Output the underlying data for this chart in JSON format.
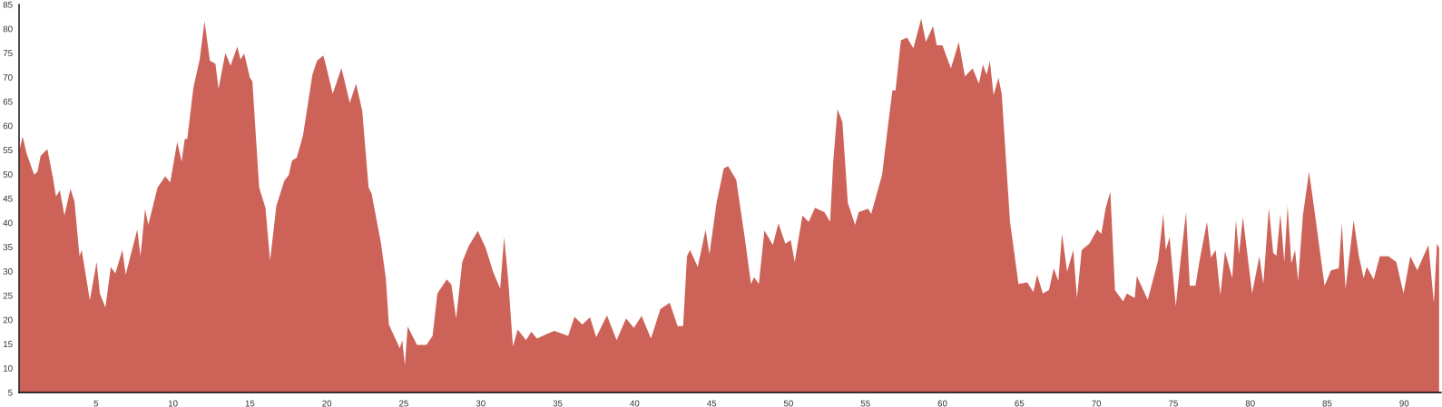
{
  "chart_data": {
    "type": "area",
    "xlim": [
      0,
      92.4
    ],
    "ylim": [
      5,
      85
    ],
    "xticks": [
      5,
      10,
      15,
      20,
      25,
      30,
      35,
      40,
      45,
      50,
      55,
      60,
      65,
      70,
      75,
      80,
      85,
      90
    ],
    "yticks": [
      5,
      10,
      15,
      20,
      25,
      30,
      35,
      40,
      45,
      50,
      55,
      60,
      65,
      70,
      75,
      80,
      85
    ],
    "grid": false,
    "series": [
      {
        "color": "#cd6358",
        "x": [
          0.03,
          0.23,
          0.48,
          0.98,
          1.2,
          1.4,
          1.84,
          2.2,
          2.4,
          2.65,
          2.95,
          3.34,
          3.6,
          3.93,
          4.07,
          4.6,
          5.04,
          5.25,
          5.61,
          5.96,
          6.26,
          6.71,
          6.93,
          7.68,
          7.89,
          8.19,
          8.4,
          9.0,
          9.5,
          9.82,
          10.28,
          10.56,
          10.77,
          10.93,
          11.33,
          11.74,
          12.05,
          12.4,
          12.76,
          12.96,
          13.27,
          13.41,
          13.74,
          14.18,
          14.39,
          14.63,
          15.0,
          15.16,
          15.6,
          16.01,
          16.31,
          16.72,
          17.23,
          17.53,
          17.73,
          18.04,
          18.45,
          19.06,
          19.36,
          19.77,
          19.97,
          20.38,
          20.95,
          21.49,
          21.9,
          22.3,
          22.71,
          22.91,
          23.52,
          23.83,
          24.03,
          24.74,
          24.9,
          25.07,
          25.25,
          25.86,
          26.47,
          26.87,
          27.18,
          27.79,
          28.09,
          28.4,
          28.8,
          29.2,
          29.81,
          30.32,
          30.8,
          31.26,
          31.52,
          31.79,
          32.09,
          32.4,
          32.94,
          33.29,
          33.65,
          34.26,
          34.77,
          35.68,
          36.09,
          36.6,
          37.1,
          37.5,
          38.2,
          38.83,
          39.44,
          39.95,
          40.45,
          41.06,
          41.67,
          42.28,
          42.79,
          43.15,
          43.4,
          43.6,
          44.1,
          44.61,
          44.86,
          45.32,
          45.79,
          46.07,
          46.6,
          47.15,
          47.56,
          47.76,
          48.07,
          48.43,
          48.98,
          49.34,
          49.79,
          50.14,
          50.4,
          50.9,
          51.31,
          51.72,
          52.33,
          52.7,
          52.9,
          53.18,
          53.5,
          53.85,
          54.32,
          54.56,
          55.17,
          55.37,
          56.08,
          56.49,
          56.75,
          56.95,
          57.3,
          57.7,
          58.11,
          58.62,
          58.92,
          59.39,
          59.63,
          60.0,
          60.55,
          61.06,
          61.46,
          61.96,
          62.37,
          62.63,
          62.87,
          63.08,
          63.32,
          63.64,
          63.85,
          64.39,
          64.94,
          65.51,
          65.91,
          66.15,
          66.52,
          66.92,
          67.23,
          67.53,
          67.77,
          68.1,
          68.5,
          68.74,
          69.05,
          69.55,
          70.06,
          70.32,
          70.61,
          70.91,
          71.21,
          71.74,
          71.98,
          72.49,
          72.63,
          73.34,
          74.01,
          74.35,
          74.51,
          74.76,
          75.16,
          75.49,
          75.83,
          76.07,
          76.44,
          76.74,
          77.19,
          77.45,
          77.75,
          78.06,
          78.36,
          78.83,
          79.07,
          79.27,
          79.52,
          80.12,
          80.59,
          80.85,
          81.21,
          81.49,
          81.7,
          81.96,
          82.21,
          82.43,
          82.67,
          82.91,
          83.11,
          83.42,
          83.82,
          84.13,
          84.83,
          85.24,
          85.75,
          85.95,
          86.19,
          86.72,
          87.06,
          87.37,
          87.57,
          88.02,
          88.42,
          88.99,
          89.49,
          89.96,
          90.4,
          90.85,
          91.58,
          91.93,
          92.13,
          92.27
        ],
        "values": [
          55.0,
          57.8,
          54.4,
          49.9,
          50.5,
          53.8,
          55.2,
          49.3,
          45.4,
          46.7,
          41.5,
          47.0,
          44.4,
          33.1,
          34.4,
          24.0,
          31.9,
          25.4,
          22.5,
          30.9,
          29.6,
          34.4,
          29.3,
          38.6,
          33.1,
          42.8,
          39.6,
          47.3,
          49.6,
          48.3,
          56.7,
          52.6,
          57.3,
          57.3,
          67.9,
          73.7,
          81.6,
          73.4,
          72.8,
          67.6,
          72.8,
          75.0,
          72.4,
          76.3,
          73.7,
          74.9,
          69.9,
          69.2,
          47.3,
          43.1,
          32.2,
          43.5,
          48.6,
          49.9,
          52.8,
          53.4,
          58.0,
          70.5,
          73.4,
          74.5,
          72.1,
          66.6,
          71.9,
          64.7,
          68.7,
          63.1,
          47.3,
          46.0,
          35.7,
          28.6,
          19.0,
          14.1,
          15.8,
          10.6,
          18.6,
          14.8,
          14.8,
          16.7,
          25.4,
          28.3,
          27.3,
          20.3,
          31.9,
          35.1,
          38.3,
          34.8,
          29.9,
          26.4,
          37.0,
          28.0,
          14.5,
          18.0,
          15.8,
          17.5,
          16.1,
          17.0,
          17.7,
          16.7,
          20.6,
          19.0,
          20.5,
          16.4,
          20.9,
          15.8,
          20.3,
          18.3,
          20.8,
          16.1,
          22.2,
          23.5,
          18.7,
          18.7,
          33.1,
          34.4,
          30.9,
          38.6,
          33.5,
          44.1,
          51.2,
          51.7,
          48.9,
          37.0,
          27.4,
          28.8,
          27.4,
          38.4,
          35.4,
          39.9,
          35.7,
          36.4,
          31.9,
          41.5,
          40.2,
          43.1,
          42.2,
          40.2,
          52.5,
          63.4,
          60.8,
          44.1,
          39.6,
          42.2,
          42.9,
          41.8,
          49.9,
          60.8,
          67.3,
          67.3,
          77.6,
          78.2,
          76.0,
          82.1,
          77.3,
          80.5,
          76.6,
          76.6,
          71.8,
          77.3,
          70.2,
          71.8,
          68.7,
          72.6,
          70.5,
          73.4,
          66.3,
          69.9,
          66.6,
          40.2,
          27.4,
          27.7,
          25.7,
          29.3,
          25.4,
          26.1,
          30.6,
          28.0,
          37.7,
          29.9,
          34.4,
          24.5,
          34.4,
          35.7,
          38.6,
          37.7,
          43.1,
          46.4,
          26.1,
          23.8,
          25.4,
          24.5,
          29.0,
          24.1,
          32.2,
          41.8,
          34.4,
          37.0,
          22.8,
          32.8,
          42.2,
          27.0,
          27.0,
          32.8,
          40.2,
          32.8,
          34.4,
          25.1,
          34.1,
          28.6,
          40.5,
          33.5,
          41.2,
          25.4,
          33.1,
          27.4,
          43.1,
          33.8,
          33.2,
          41.8,
          31.9,
          43.5,
          31.6,
          34.4,
          28.0,
          41.5,
          50.5,
          43.5,
          27.0,
          30.2,
          30.6,
          39.9,
          26.4,
          40.5,
          33.1,
          28.6,
          30.9,
          28.3,
          33.1,
          33.1,
          31.9,
          25.4,
          33.1,
          30.2,
          35.4,
          23.5,
          35.7,
          34.8
        ]
      }
    ]
  }
}
